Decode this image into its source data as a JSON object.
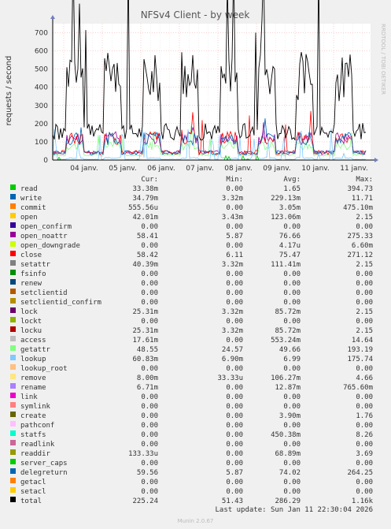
{
  "chart_data": {
    "type": "line",
    "title": "NFSv4 Client - by week",
    "ylabel": "requests / second",
    "ylim": [
      0,
      750
    ],
    "yticks": [
      0,
      100,
      200,
      300,
      400,
      500,
      600,
      700
    ],
    "xticks": [
      "04 janv.",
      "05 janv.",
      "06 janv.",
      "07 janv.",
      "08 janv.",
      "09 janv.",
      "10 janv.",
      "11 janv."
    ],
    "grid": true,
    "columns": [
      "Cur:",
      "Min:",
      "Avg:",
      "Max:"
    ],
    "series": [
      {
        "name": "read",
        "color": "#00cc00",
        "cur": "33.38m",
        "min": "0.00",
        "avg": "1.65",
        "max": "394.73"
      },
      {
        "name": "write",
        "color": "#0066b3",
        "cur": "34.79m",
        "min": "3.32m",
        "avg": "229.13m",
        "max": "11.71"
      },
      {
        "name": "commit",
        "color": "#ff8000",
        "cur": "555.56u",
        "min": "0.00",
        "avg": "3.05m",
        "max": "475.10m"
      },
      {
        "name": "open",
        "color": "#ffcc00",
        "cur": "42.01m",
        "min": "3.43m",
        "avg": "123.06m",
        "max": "2.15"
      },
      {
        "name": "open_confirm",
        "color": "#330099",
        "cur": "0.00",
        "min": "0.00",
        "avg": "0.00",
        "max": "0.00"
      },
      {
        "name": "open_noattr",
        "color": "#990099",
        "cur": "58.41",
        "min": "5.87",
        "avg": "76.66",
        "max": "275.33"
      },
      {
        "name": "open_downgrade",
        "color": "#ccff00",
        "cur": "0.00",
        "min": "0.00",
        "avg": "4.17u",
        "max": "6.60m"
      },
      {
        "name": "close",
        "color": "#ff0000",
        "cur": "58.42",
        "min": "6.11",
        "avg": "75.47",
        "max": "271.12"
      },
      {
        "name": "setattr",
        "color": "#808080",
        "cur": "40.39m",
        "min": "3.32m",
        "avg": "111.41m",
        "max": "2.15"
      },
      {
        "name": "fsinfo",
        "color": "#008f00",
        "cur": "0.00",
        "min": "0.00",
        "avg": "0.00",
        "max": "0.00"
      },
      {
        "name": "renew",
        "color": "#00487d",
        "cur": "0.00",
        "min": "0.00",
        "avg": "0.00",
        "max": "0.00"
      },
      {
        "name": "setclientid",
        "color": "#b35a00",
        "cur": "0.00",
        "min": "0.00",
        "avg": "0.00",
        "max": "0.00"
      },
      {
        "name": "setclientid_confirm",
        "color": "#b38f00",
        "cur": "0.00",
        "min": "0.00",
        "avg": "0.00",
        "max": "0.00"
      },
      {
        "name": "lock",
        "color": "#6b006b",
        "cur": "25.31m",
        "min": "3.32m",
        "avg": "85.72m",
        "max": "2.15"
      },
      {
        "name": "lockt",
        "color": "#8fb300",
        "cur": "0.00",
        "min": "0.00",
        "avg": "0.00",
        "max": "0.00"
      },
      {
        "name": "locku",
        "color": "#b30000",
        "cur": "25.31m",
        "min": "3.32m",
        "avg": "85.72m",
        "max": "2.15"
      },
      {
        "name": "access",
        "color": "#bebebe",
        "cur": "17.61m",
        "min": "0.00",
        "avg": "553.24m",
        "max": "14.64"
      },
      {
        "name": "getattr",
        "color": "#80ff80",
        "cur": "48.55",
        "min": "24.57",
        "avg": "49.66",
        "max": "193.19"
      },
      {
        "name": "lookup",
        "color": "#80c9ff",
        "cur": "60.83m",
        "min": "6.90m",
        "avg": "6.99",
        "max": "175.74"
      },
      {
        "name": "lookup_root",
        "color": "#ffc080",
        "cur": "0.00",
        "min": "0.00",
        "avg": "0.00",
        "max": "0.00"
      },
      {
        "name": "remove",
        "color": "#ffe680",
        "cur": "8.00m",
        "min": "33.33u",
        "avg": "106.27m",
        "max": "4.66"
      },
      {
        "name": "rename",
        "color": "#aa80ff",
        "cur": "6.71m",
        "min": "0.00",
        "avg": "12.87m",
        "max": "765.60m"
      },
      {
        "name": "link",
        "color": "#ee00cc",
        "cur": "0.00",
        "min": "0.00",
        "avg": "0.00",
        "max": "0.00"
      },
      {
        "name": "symlink",
        "color": "#ff8080",
        "cur": "0.00",
        "min": "0.00",
        "avg": "0.00",
        "max": "0.00"
      },
      {
        "name": "create",
        "color": "#666600",
        "cur": "0.00",
        "min": "0.00",
        "avg": "3.90m",
        "max": "1.76"
      },
      {
        "name": "pathconf",
        "color": "#ffbfff",
        "cur": "0.00",
        "min": "0.00",
        "avg": "0.00",
        "max": "0.00"
      },
      {
        "name": "statfs",
        "color": "#00ffcc",
        "cur": "0.00",
        "min": "0.00",
        "avg": "450.38m",
        "max": "8.26"
      },
      {
        "name": "readlink",
        "color": "#cc6699",
        "cur": "0.00",
        "min": "0.00",
        "avg": "0.00",
        "max": "0.00"
      },
      {
        "name": "readdir",
        "color": "#999900",
        "cur": "133.33u",
        "min": "0.00",
        "avg": "68.89m",
        "max": "3.69"
      },
      {
        "name": "server_caps",
        "color": "#00cc00",
        "cur": "0.00",
        "min": "0.00",
        "avg": "0.00",
        "max": "0.00"
      },
      {
        "name": "delegreturn",
        "color": "#0066b3",
        "cur": "59.56",
        "min": "5.87",
        "avg": "74.02",
        "max": "264.25"
      },
      {
        "name": "getacl",
        "color": "#ff8000",
        "cur": "0.00",
        "min": "0.00",
        "avg": "0.00",
        "max": "0.00"
      },
      {
        "name": "setacl",
        "color": "#ffcc00",
        "cur": "0.00",
        "min": "0.00",
        "avg": "0.00",
        "max": "0.00"
      },
      {
        "name": "total",
        "color": "#000000",
        "cur": "225.24",
        "min": "51.43",
        "avg": "286.29",
        "max": "1.16k"
      }
    ]
  },
  "footer": {
    "last_update": "Last update: Sun Jan 11 22:30:04 2026",
    "generator": "Munin 2.0.67",
    "watermark": "RRDTOOL / TOBI OETIKER"
  }
}
